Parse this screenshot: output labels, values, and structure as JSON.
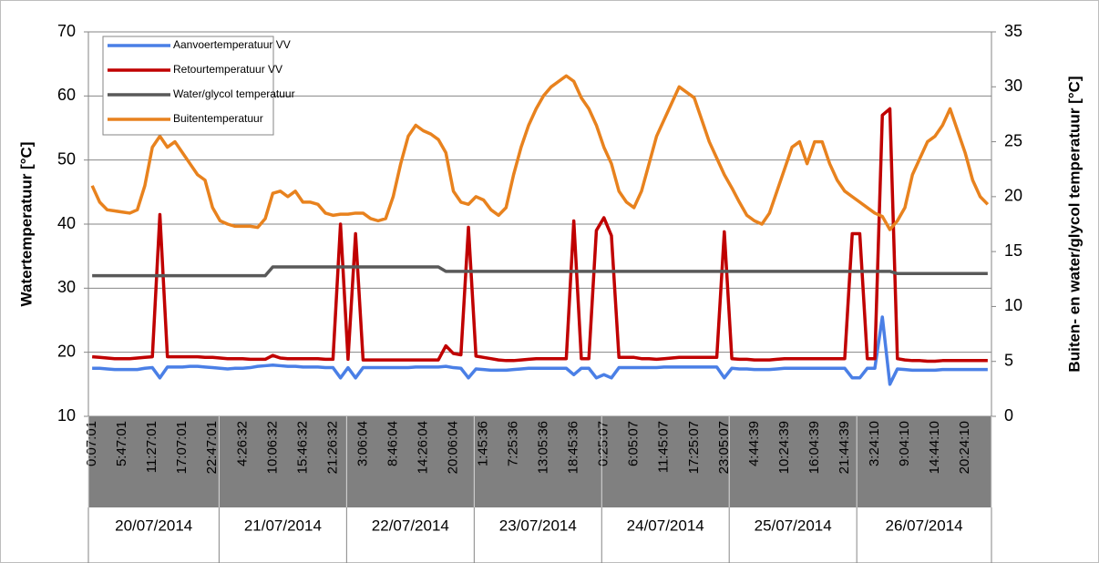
{
  "chart_data": {
    "type": "line",
    "y_label": "Watertemperatuur [°C]",
    "y2_label": "Buiten- en water/glycol temperatuur [°C]",
    "ylim": [
      10,
      70
    ],
    "yticks": [
      10,
      20,
      30,
      40,
      50,
      60,
      70
    ],
    "y2lim": [
      0,
      35
    ],
    "y2ticks": [
      0,
      5,
      10,
      15,
      20,
      25,
      30,
      35
    ],
    "grid": true,
    "legend": "upper-left",
    "dates": [
      "20/07/2014",
      "21/07/2014",
      "22/07/2014",
      "23/07/2014",
      "24/07/2014",
      "25/07/2014",
      "26/07/2014"
    ],
    "categories": [
      "0:07:01",
      null,
      null,
      null,
      "5:47:01",
      null,
      null,
      null,
      "11:27:01",
      null,
      null,
      null,
      "17:07:01",
      null,
      null,
      null,
      "22:47:01",
      null,
      null,
      null,
      "4:26:32",
      null,
      null,
      null,
      "10:06:32",
      null,
      null,
      null,
      "15:46:32",
      null,
      null,
      null,
      "21:26:32",
      null,
      null,
      null,
      "3:06:04",
      null,
      null,
      null,
      "8:46:04",
      null,
      null,
      null,
      "14:26:04",
      null,
      null,
      null,
      "20:06:04",
      null,
      null,
      null,
      "1:45:36",
      null,
      null,
      null,
      "7:25:36",
      null,
      null,
      null,
      "13:05:36",
      null,
      null,
      null,
      "18:45:36",
      null,
      null,
      null,
      "0:25:07",
      null,
      null,
      null,
      "6:05:07",
      null,
      null,
      null,
      "11:45:07",
      null,
      null,
      null,
      "17:25:07",
      null,
      null,
      null,
      "23:05:07",
      null,
      null,
      null,
      "4:44:39",
      null,
      null,
      null,
      "10:24:39",
      null,
      null,
      null,
      "16:04:39",
      null,
      null,
      null,
      "21:44:39",
      null,
      null,
      null,
      "3:24:10",
      null,
      null,
      null,
      "9:04:10",
      null,
      null,
      null,
      "14:44:10",
      null,
      null,
      null,
      "20:24:10",
      null,
      null,
      null
    ],
    "series": [
      {
        "name": "Aanvoertemperatuur VV",
        "color": "#4a7fe6",
        "values": [
          17.5,
          17.5,
          17.4,
          17.3,
          17.3,
          17.3,
          17.3,
          17.5,
          17.6,
          16.0,
          17.7,
          17.7,
          17.7,
          17.8,
          17.8,
          17.7,
          17.6,
          17.5,
          17.4,
          17.5,
          17.5,
          17.6,
          17.8,
          17.9,
          18.0,
          17.9,
          17.8,
          17.8,
          17.7,
          17.7,
          17.7,
          17.6,
          17.6,
          16.0,
          17.6,
          16.0,
          17.6,
          17.6,
          17.6,
          17.6,
          17.6,
          17.6,
          17.6,
          17.7,
          17.7,
          17.7,
          17.7,
          17.8,
          17.6,
          17.5,
          16.0,
          17.4,
          17.3,
          17.2,
          17.2,
          17.2,
          17.3,
          17.4,
          17.5,
          17.5,
          17.5,
          17.5,
          17.5,
          17.5,
          16.5,
          17.5,
          17.5,
          16.0,
          16.5,
          16.0,
          17.6,
          17.6,
          17.6,
          17.6,
          17.6,
          17.6,
          17.7,
          17.7,
          17.7,
          17.7,
          17.7,
          17.7,
          17.7,
          17.7,
          16.0,
          17.5,
          17.4,
          17.4,
          17.3,
          17.3,
          17.3,
          17.4,
          17.5,
          17.5,
          17.5,
          17.5,
          17.5,
          17.5,
          17.5,
          17.5,
          17.5,
          16.0,
          16.0,
          17.5,
          17.5,
          25.5,
          15.0,
          17.4,
          17.3,
          17.2,
          17.2,
          17.2,
          17.2,
          17.3,
          17.3,
          17.3,
          17.3,
          17.3,
          17.3,
          17.3
        ]
      },
      {
        "name": "Retourtemperatuur VV",
        "color": "#c00000",
        "values": [
          19.3,
          19.2,
          19.1,
          19.0,
          19.0,
          19.0,
          19.1,
          19.2,
          19.3,
          41.5,
          19.3,
          19.3,
          19.3,
          19.3,
          19.3,
          19.2,
          19.2,
          19.1,
          19.0,
          19.0,
          19.0,
          18.9,
          18.9,
          18.9,
          19.5,
          19.1,
          19.0,
          19.0,
          19.0,
          19.0,
          19.0,
          18.9,
          18.9,
          40.0,
          18.9,
          38.5,
          18.8,
          18.8,
          18.8,
          18.8,
          18.8,
          18.8,
          18.8,
          18.8,
          18.8,
          18.8,
          18.8,
          21.0,
          19.8,
          19.6,
          39.5,
          19.4,
          19.2,
          19.0,
          18.8,
          18.7,
          18.7,
          18.8,
          18.9,
          19.0,
          19.0,
          19.0,
          19.0,
          19.0,
          40.5,
          19.0,
          19.0,
          39.0,
          41.0,
          38.2,
          19.2,
          19.2,
          19.2,
          19.0,
          19.0,
          18.9,
          19.0,
          19.1,
          19.2,
          19.2,
          19.2,
          19.2,
          19.2,
          19.2,
          38.8,
          19.0,
          18.9,
          18.9,
          18.8,
          18.8,
          18.8,
          18.9,
          19.0,
          19.0,
          19.0,
          19.0,
          19.0,
          19.0,
          19.0,
          19.0,
          19.0,
          38.5,
          38.5,
          19.0,
          19.0,
          57.0,
          58.0,
          19.0,
          18.8,
          18.7,
          18.7,
          18.6,
          18.6,
          18.7,
          18.7,
          18.7,
          18.7,
          18.7,
          18.7,
          18.7
        ]
      },
      {
        "name": "Water/glycol temperatuur",
        "color": "#595959",
        "axis": "y2",
        "values": [
          12.8,
          12.8,
          12.8,
          12.8,
          12.8,
          12.8,
          12.8,
          12.8,
          12.8,
          12.8,
          12.8,
          12.8,
          12.8,
          12.8,
          12.8,
          12.8,
          12.8,
          12.8,
          12.8,
          12.8,
          12.8,
          12.8,
          12.8,
          12.8,
          13.6,
          13.6,
          13.6,
          13.6,
          13.6,
          13.6,
          13.6,
          13.6,
          13.6,
          13.6,
          13.6,
          13.6,
          13.6,
          13.6,
          13.6,
          13.6,
          13.6,
          13.6,
          13.6,
          13.6,
          13.6,
          13.6,
          13.6,
          13.2,
          13.2,
          13.2,
          13.2,
          13.2,
          13.2,
          13.2,
          13.2,
          13.2,
          13.2,
          13.2,
          13.2,
          13.2,
          13.2,
          13.2,
          13.2,
          13.2,
          13.2,
          13.2,
          13.2,
          13.2,
          13.2,
          13.2,
          13.2,
          13.2,
          13.2,
          13.2,
          13.2,
          13.2,
          13.2,
          13.2,
          13.2,
          13.2,
          13.2,
          13.2,
          13.2,
          13.2,
          13.2,
          13.2,
          13.2,
          13.2,
          13.2,
          13.2,
          13.2,
          13.2,
          13.2,
          13.2,
          13.2,
          13.2,
          13.2,
          13.2,
          13.2,
          13.2,
          13.2,
          13.2,
          13.2,
          13.2,
          13.2,
          13.2,
          13.2,
          13.0,
          13.0,
          13.0,
          13.0,
          13.0,
          13.0,
          13.0,
          13.0,
          13.0,
          13.0,
          13.0,
          13.0,
          13.0
        ]
      },
      {
        "name": "Buitentemperatuur",
        "color": "#e8821e",
        "axis": "y2",
        "values": [
          21.0,
          19.5,
          18.8,
          18.7,
          18.6,
          18.5,
          18.8,
          21.0,
          24.5,
          25.5,
          24.5,
          25.0,
          24.0,
          23.0,
          22.0,
          21.5,
          19.0,
          17.8,
          17.5,
          17.3,
          17.3,
          17.3,
          17.2,
          18.0,
          20.3,
          20.5,
          20.0,
          20.5,
          19.5,
          19.5,
          19.3,
          18.5,
          18.3,
          18.4,
          18.4,
          18.5,
          18.5,
          18.0,
          17.8,
          18.0,
          20.0,
          23.0,
          25.5,
          26.5,
          26.0,
          25.7,
          25.2,
          24.0,
          20.5,
          19.5,
          19.3,
          20.0,
          19.7,
          18.8,
          18.3,
          19.0,
          22.0,
          24.5,
          26.5,
          28.0,
          29.2,
          30.0,
          30.5,
          31.0,
          30.5,
          29.0,
          28.0,
          26.5,
          24.5,
          23.0,
          20.5,
          19.5,
          19.0,
          20.5,
          23.0,
          25.5,
          27.0,
          28.5,
          30.0,
          29.5,
          29.0,
          27.0,
          25.0,
          23.5,
          22.0,
          20.8,
          19.5,
          18.3,
          17.8,
          17.5,
          18.5,
          20.5,
          22.5,
          24.5,
          25.0,
          23.0,
          25.0,
          25.0,
          23.0,
          21.5,
          20.5,
          20.0,
          19.5,
          19.0,
          18.5,
          18.2,
          17.0,
          17.8,
          19.0,
          22.0,
          23.5,
          25.0,
          25.5,
          26.5,
          28.0,
          26.0,
          24.0,
          21.5,
          20.0,
          19.3
        ]
      }
    ]
  }
}
